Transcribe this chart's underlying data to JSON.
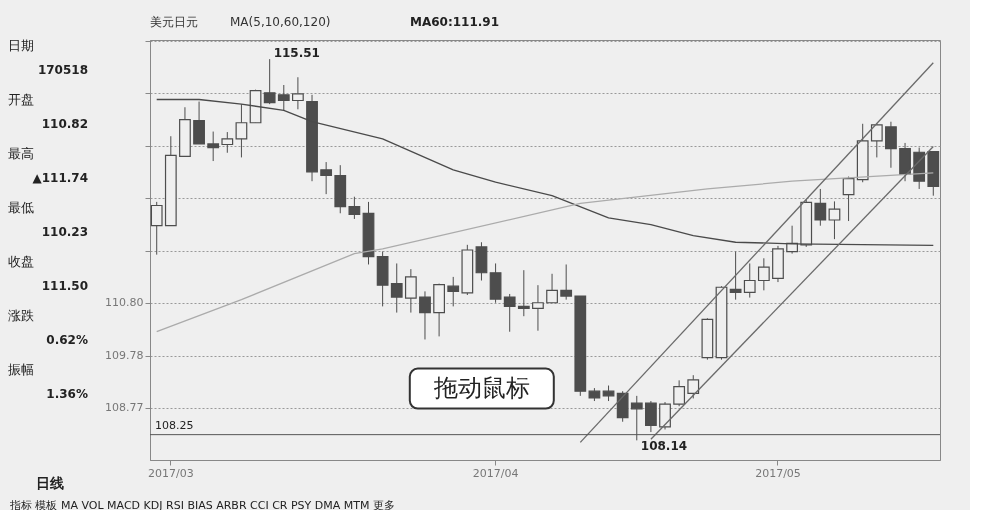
{
  "chart_data": {
    "type": "candlestick",
    "title": "美元日元",
    "subtitle": "MA(5,10,60,120)",
    "categories": [
      null,
      "2017/03",
      null,
      null,
      null,
      null,
      null,
      null,
      null,
      null,
      null,
      null,
      null,
      null,
      null,
      null,
      null,
      null,
      null,
      null,
      null,
      null,
      null,
      null,
      "2017/04",
      null,
      null,
      null,
      null,
      null,
      null,
      null,
      null,
      null,
      null,
      null,
      null,
      null,
      null,
      null,
      null,
      null,
      null,
      null,
      "2017/05",
      null,
      null,
      null,
      null,
      null,
      null,
      null,
      null,
      null,
      null,
      null
    ],
    "color": "#4d4d4d",
    "ohlc": [
      [
        112.29,
        112.75,
        111.73,
        112.68
      ],
      [
        112.29,
        114.02,
        112.29,
        113.65
      ],
      [
        113.63,
        114.58,
        113.63,
        114.34
      ],
      [
        114.32,
        114.69,
        113.87,
        113.87
      ],
      [
        113.87,
        114.11,
        113.54,
        113.8
      ],
      [
        113.86,
        114.1,
        113.7,
        113.97
      ],
      [
        113.97,
        114.64,
        113.61,
        114.28
      ],
      [
        114.28,
        114.92,
        114.28,
        114.9
      ],
      [
        114.86,
        115.51,
        114.64,
        114.67
      ],
      [
        114.82,
        115.01,
        114.52,
        114.71
      ],
      [
        114.71,
        115.16,
        114.54,
        114.84
      ],
      [
        114.69,
        114.82,
        113.15,
        113.33
      ],
      [
        113.37,
        113.52,
        112.9,
        113.26
      ],
      [
        113.26,
        113.46,
        112.53,
        112.66
      ],
      [
        112.66,
        112.85,
        112.42,
        112.51
      ],
      [
        112.53,
        112.75,
        111.54,
        111.69
      ],
      [
        111.69,
        111.79,
        110.73,
        111.14
      ],
      [
        111.17,
        111.56,
        110.61,
        110.91
      ],
      [
        110.89,
        111.45,
        110.61,
        111.3
      ],
      [
        110.91,
        111.02,
        110.09,
        110.61
      ],
      [
        110.61,
        111.17,
        110.15,
        111.15
      ],
      [
        111.12,
        111.3,
        110.73,
        111.02
      ],
      [
        110.99,
        111.92,
        110.95,
        111.82
      ],
      [
        111.88,
        111.97,
        111.23,
        111.38
      ],
      [
        111.38,
        111.56,
        110.8,
        110.87
      ],
      [
        110.91,
        110.97,
        110.24,
        110.73
      ],
      [
        110.73,
        111.43,
        110.54,
        110.69
      ],
      [
        110.69,
        111.14,
        110.26,
        110.8
      ],
      [
        110.8,
        111.36,
        110.8,
        111.04
      ],
      [
        111.04,
        111.54,
        110.86,
        110.93
      ],
      [
        110.93,
        110.93,
        109.0,
        109.09
      ],
      [
        109.09,
        109.15,
        108.9,
        108.96
      ],
      [
        109.09,
        109.2,
        108.9,
        109.0
      ],
      [
        109.05,
        109.09,
        108.5,
        108.58
      ],
      [
        108.86,
        109.0,
        108.14,
        108.75
      ],
      [
        108.86,
        108.9,
        108.3,
        108.43
      ],
      [
        108.4,
        108.88,
        108.35,
        108.84
      ],
      [
        108.84,
        109.3,
        108.8,
        109.18
      ],
      [
        109.05,
        109.4,
        108.95,
        109.31
      ],
      [
        109.74,
        110.5,
        109.7,
        110.48
      ],
      [
        109.74,
        111.12,
        109.7,
        111.1
      ],
      [
        111.06,
        111.79,
        110.86,
        111.0
      ],
      [
        111.0,
        111.56,
        110.9,
        111.23
      ],
      [
        111.23,
        111.66,
        111.04,
        111.49
      ],
      [
        111.27,
        111.9,
        111.2,
        111.84
      ],
      [
        111.79,
        112.29,
        111.75,
        111.95
      ],
      [
        111.92,
        112.8,
        111.88,
        112.74
      ],
      [
        112.72,
        113.0,
        112.29,
        112.4
      ],
      [
        112.4,
        112.76,
        112.03,
        112.61
      ],
      [
        112.89,
        113.24,
        112.38,
        113.2
      ],
      [
        113.18,
        114.26,
        113.13,
        113.93
      ],
      [
        113.93,
        114.26,
        113.61,
        114.24
      ],
      [
        114.2,
        114.3,
        113.41,
        113.78
      ],
      [
        113.78,
        113.89,
        113.15,
        113.28
      ],
      [
        113.71,
        113.8,
        113.0,
        113.15
      ],
      [
        113.72,
        113.72,
        112.87,
        113.05
      ]
    ],
    "series": [
      {
        "type": "line",
        "color": "#4a4a4a",
        "values": [
          114.73,
          null,
          null,
          114.73,
          null,
          null,
          114.64,
          null,
          null,
          114.52,
          null,
          114.3,
          null,
          null,
          null,
          null,
          113.97,
          null,
          null,
          null,
          null,
          113.37,
          null,
          null,
          113.13,
          null,
          null,
          null,
          112.87,
          null,
          null,
          null,
          112.44,
          null,
          null,
          112.31,
          null,
          null,
          112.1,
          null,
          null,
          111.97,
          null,
          null,
          null,
          111.94,
          null,
          null,
          null,
          null,
          null,
          null,
          null,
          null,
          null,
          111.91
        ]
      },
      {
        "type": "line",
        "color": "#ababab",
        "values": [
          110.24,
          null,
          null,
          null,
          null,
          null,
          110.86,
          null,
          null,
          null,
          null,
          null,
          null,
          null,
          111.75,
          null,
          111.84,
          null,
          null,
          null,
          null,
          null,
          null,
          null,
          null,
          null,
          null,
          null,
          null,
          null,
          112.72,
          null,
          null,
          null,
          null,
          null,
          null,
          null,
          null,
          113.0,
          null,
          null,
          null,
          null,
          null,
          113.15,
          null,
          null,
          null,
          null,
          null,
          null,
          null,
          null,
          null,
          113.31
        ]
      },
      {
        "type": "line",
        "color": "#6a6a6a",
        "values": [
          null,
          null,
          null,
          null,
          null,
          null,
          null,
          null,
          null,
          null,
          null,
          null,
          null,
          null,
          null,
          null,
          null,
          null,
          null,
          null,
          null,
          null,
          null,
          null,
          null,
          null,
          null,
          null,
          null,
          null,
          108.1,
          null,
          null,
          null,
          null,
          null,
          null,
          null,
          null,
          null,
          null,
          null,
          null,
          null,
          null,
          null,
          null,
          null,
          null,
          null,
          null,
          null,
          null,
          null,
          null,
          115.44
        ]
      },
      {
        "type": "line",
        "color": "#6a6a6a",
        "values": [
          null,
          null,
          null,
          null,
          null,
          null,
          null,
          null,
          null,
          null,
          null,
          null,
          null,
          null,
          null,
          null,
          null,
          null,
          null,
          null,
          null,
          null,
          null,
          null,
          null,
          null,
          null,
          null,
          null,
          null,
          null,
          null,
          null,
          null,
          null,
          108.16,
          null,
          null,
          null,
          null,
          null,
          null,
          null,
          null,
          null,
          null,
          null,
          null,
          null,
          null,
          null,
          null,
          null,
          null,
          null,
          113.82
        ]
      }
    ],
    "ylim": [
      107.76,
      115.88
    ],
    "yticks": [
      {
        "value": 108.77,
        "label": "108.77"
      },
      {
        "value": 109.78,
        "label": "109.78"
      },
      {
        "value": 110.8,
        "label": "110.80"
      },
      {
        "value": 111.81,
        "label": null
      },
      {
        "value": 112.83,
        "label": null
      },
      {
        "value": 113.84,
        "label": null
      },
      {
        "value": 114.86,
        "label": null
      },
      {
        "value": 115.87,
        "label": null
      }
    ],
    "grid": "y",
    "ref_lines": [
      {
        "axis": "y",
        "value": 108.25,
        "label": "108.25",
        "color": "#555555"
      }
    ],
    "annotations": [
      "日期",
      "170518",
      "开盘",
      "110.82",
      "最高",
      "▲111.74",
      "最低",
      "110.23",
      "收盘",
      "111.50",
      "涨跌",
      "0.62%",
      "振幅",
      "1.36%",
      "MA60:111.91",
      "拖动鼠标",
      "日线",
      "指标 模板  MA VOL MACD KDJ RSI BIAS ARBR CCI CR PSY DMA MTM 更多",
      "115.51",
      "108.14"
    ]
  }
}
